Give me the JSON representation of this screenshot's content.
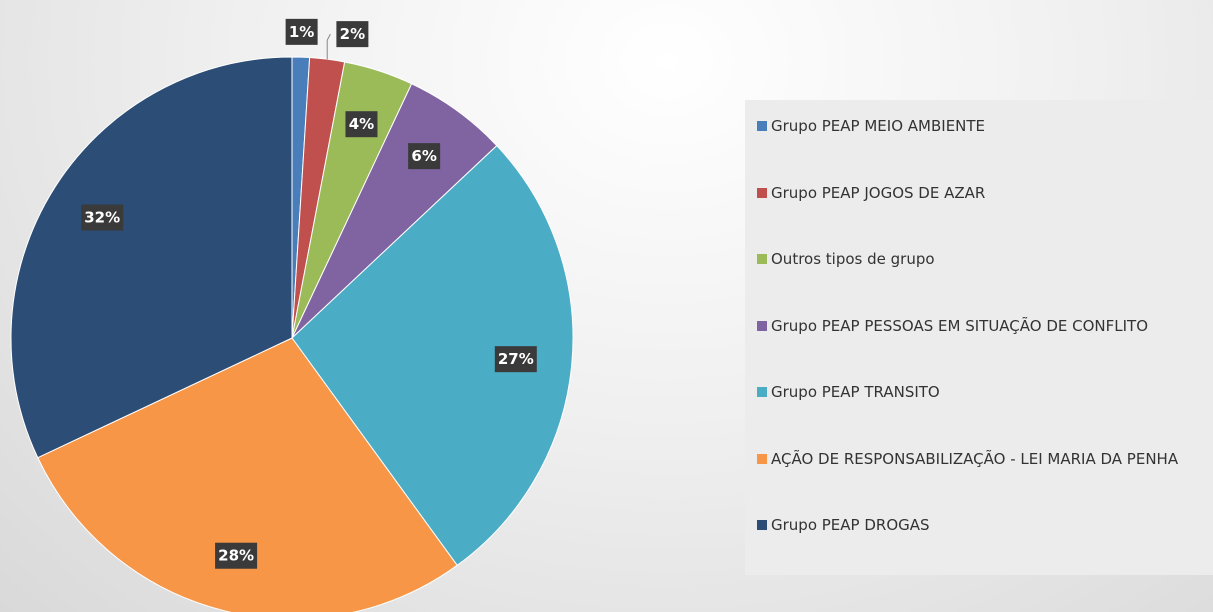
{
  "chart_data": {
    "type": "pie",
    "categories": [
      "Grupo PEAP MEIO AMBIENTE",
      "Grupo PEAP JOGOS DE AZAR",
      "Outros tipos de grupo",
      "Grupo PEAP PESSOAS EM SITUAÇÃO DE CONFLITO",
      "Grupo PEAP TRANSITO",
      "AÇÃO DE RESPONSABILIZAÇÃO - LEI MARIA DA PENHA",
      "Grupo PEAP DROGAS"
    ],
    "values": [
      1,
      2,
      4,
      6,
      27,
      28,
      32
    ],
    "value_labels": [
      "1%",
      "2%",
      "4%",
      "6%",
      "27%",
      "28%",
      "32%"
    ],
    "colors": [
      "#4a7ebb",
      "#c0504d",
      "#9bbb59",
      "#8064a2",
      "#4bacc6",
      "#f79646",
      "#2c4d75"
    ],
    "legend": "right"
  }
}
